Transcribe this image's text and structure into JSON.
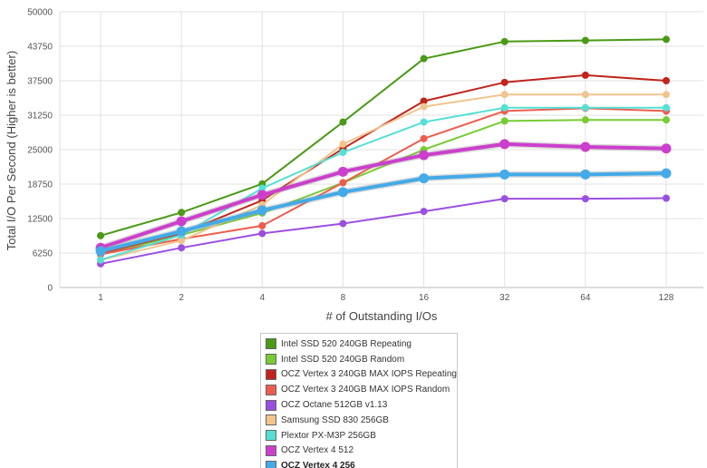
{
  "chart_data": {
    "type": "line",
    "xlabel": "# of Outstanding I/Os",
    "ylabel": "Total I/O Per Second (Higher is better)",
    "ylim": [
      0,
      50000
    ],
    "yticks": [
      "0",
      "6250",
      "12500",
      "18750",
      "25000",
      "31250",
      "37500",
      "43750",
      "50000"
    ],
    "categories": [
      "1",
      "2",
      "4",
      "8",
      "16",
      "32",
      "64",
      "128"
    ],
    "grid": true,
    "legend_position": "bottom",
    "series": [
      {
        "name": "Intel SSD 520 240GB Repeating",
        "color": "#4a9a16",
        "highlight": false,
        "values": [
          9400,
          13600,
          18800,
          30000,
          41500,
          44600,
          44800,
          45000
        ]
      },
      {
        "name": "Intel SSD 520 240GB Random",
        "color": "#77cc33",
        "highlight": false,
        "values": [
          6000,
          9500,
          13500,
          19000,
          25000,
          30200,
          30400,
          30400
        ]
      },
      {
        "name": "OCZ Vertex 3 240GB MAX IOPS Repeating",
        "color": "#c0241c",
        "highlight": false,
        "values": [
          6200,
          9800,
          15800,
          25200,
          33800,
          37200,
          38500,
          37500
        ]
      },
      {
        "name": "OCZ Vertex 3 240GB MAX IOPS Random",
        "color": "#ee5c4e",
        "highlight": false,
        "values": [
          6000,
          8800,
          11200,
          19000,
          27000,
          32000,
          32500,
          32000
        ]
      },
      {
        "name": "OCZ Octane 512GB v1.13",
        "color": "#9b4fe0",
        "highlight": false,
        "values": [
          4300,
          7200,
          9800,
          11600,
          13800,
          16100,
          16100,
          16200
        ]
      },
      {
        "name": "Samsung SSD 830 256GB",
        "color": "#f1c48e",
        "highlight": false,
        "values": [
          5000,
          8500,
          15000,
          26000,
          32800,
          35000,
          35000,
          35000
        ]
      },
      {
        "name": "Plextor PX-M3P 256GB",
        "color": "#55e0d6",
        "highlight": false,
        "values": [
          5000,
          9500,
          18000,
          24500,
          30000,
          32600,
          32600,
          32600
        ]
      },
      {
        "name": "OCZ Vertex 4 512",
        "color": "#cc3fcc",
        "highlight": true,
        "values": [
          7200,
          12000,
          16800,
          21000,
          24000,
          26000,
          25500,
          25200
        ]
      },
      {
        "name": "OCZ Vertex 4 256",
        "color": "#44aae8",
        "highlight": true,
        "values": [
          6600,
          10200,
          14000,
          17300,
          19800,
          20500,
          20500,
          20700
        ]
      }
    ]
  },
  "legend": {
    "active_item": "OCZ Vertex 4 256"
  }
}
